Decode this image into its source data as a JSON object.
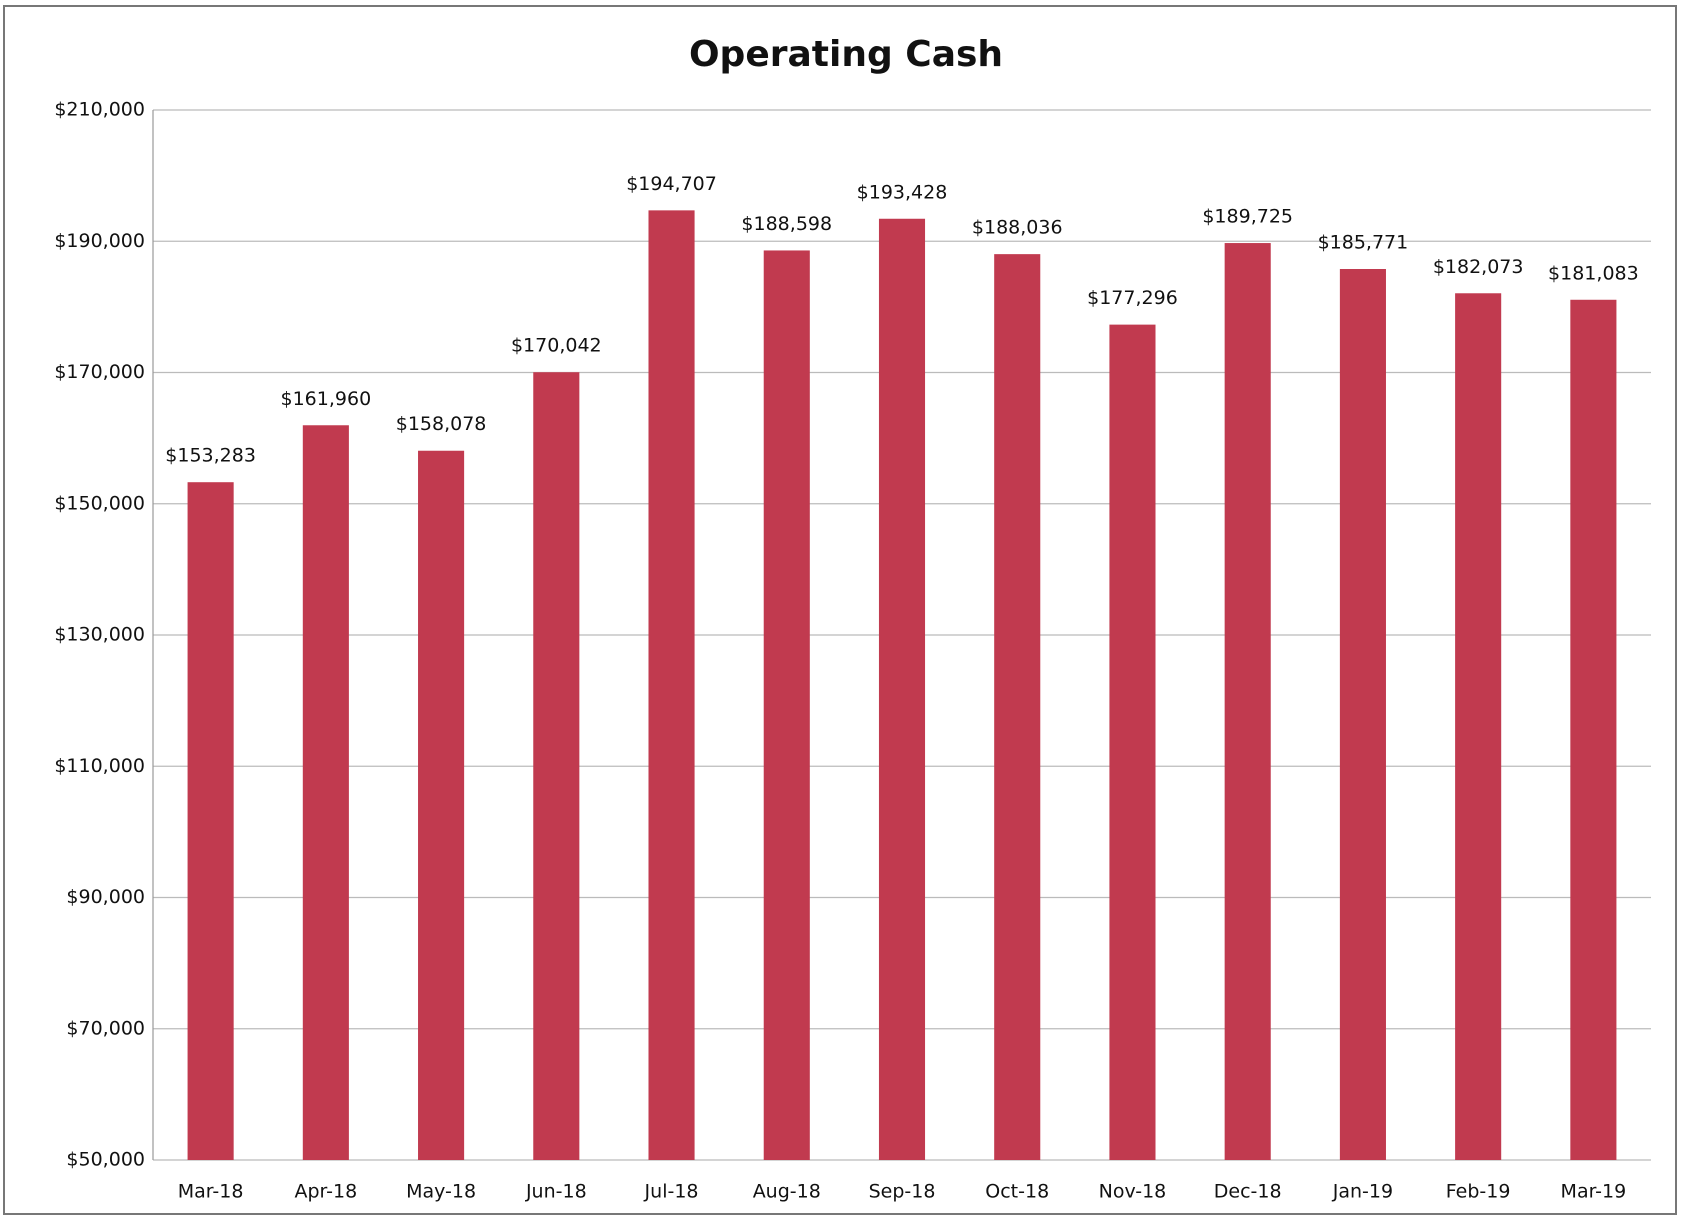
{
  "chart_data": {
    "type": "bar",
    "title": "Operating Cash",
    "categories": [
      "Mar-18",
      "Apr-18",
      "May-18",
      "Jun-18",
      "Jul-18",
      "Aug-18",
      "Sep-18",
      "Oct-18",
      "Nov-18",
      "Dec-18",
      "Jan-19",
      "Feb-19",
      "Mar-19"
    ],
    "values": [
      153283,
      161960,
      158078,
      170042,
      194707,
      188598,
      193428,
      188036,
      177296,
      189725,
      185771,
      182073,
      181083
    ],
    "value_labels": [
      "$153,283",
      "$161,960",
      "$158,078",
      "$170,042",
      "$194,707",
      "$188,598",
      "$193,428",
      "$188,036",
      "$177,296",
      "$189,725",
      "$185,771",
      "$182,073",
      "$181,083"
    ],
    "color": "#c13a4f",
    "ylim": [
      50000,
      210000
    ],
    "yticks": [
      {
        "value": 50000,
        "label": "$50,000"
      },
      {
        "value": 70000,
        "label": "$70,000"
      },
      {
        "value": 90000,
        "label": "$90,000"
      },
      {
        "value": 110000,
        "label": "$110,000"
      },
      {
        "value": 130000,
        "label": "$130,000"
      },
      {
        "value": 150000,
        "label": "$150,000"
      },
      {
        "value": 170000,
        "label": "$170,000"
      },
      {
        "value": 190000,
        "label": "$190,000"
      },
      {
        "value": 210000,
        "label": "$210,000"
      }
    ],
    "grid": true
  }
}
